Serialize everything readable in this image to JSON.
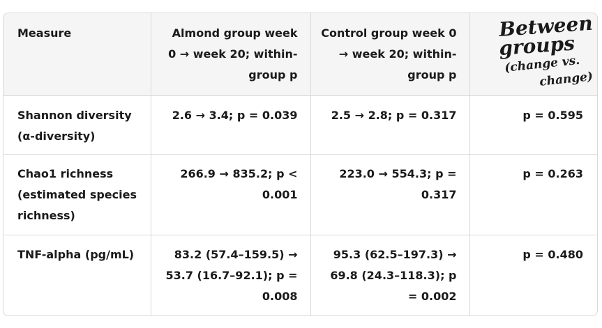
{
  "table": {
    "headers": {
      "measure": "Measure",
      "almond": "Almond group week 0 → week 20; within-group p",
      "control": "Control group week 0 → week 20; within-group p",
      "between_line1": "Between",
      "between_line2": "groups",
      "between_line3a": "(change vs.",
      "between_line3b": "change)"
    },
    "rows": [
      {
        "measure": "Shannon diversity (α-diversity)",
        "almond": "2.6 → 3.4; p = 0.039",
        "control": "2.5 → 2.8; p = 0.317",
        "between": "p = 0.595"
      },
      {
        "measure": "Chao1 richness (estimated species richness)",
        "almond": "266.9 → 835.2; p < 0.001",
        "control": "223.0 → 554.3; p = 0.317",
        "between": "p = 0.263"
      },
      {
        "measure": "TNF-alpha (pg/mL)",
        "almond": "83.2 (57.4–159.5) → 53.7 (16.7–92.1); p = 0.008",
        "control": "95.3 (62.5–197.3) → 69.8 (24.3–118.3); p = 0.002",
        "between": "p = 0.480"
      }
    ]
  }
}
